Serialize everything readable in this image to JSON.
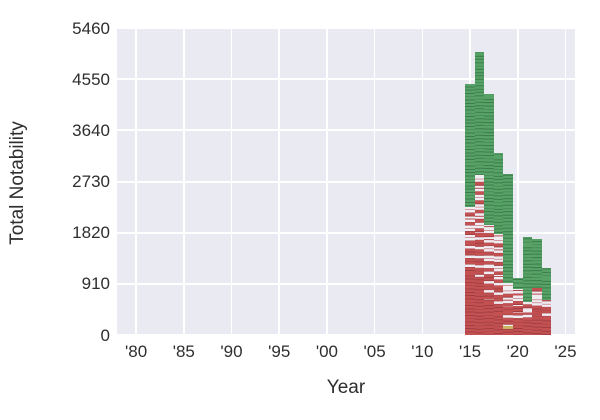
{
  "figure": {
    "background_color": "#ffffff",
    "plot_background_color": "#eaeaf2",
    "grid_color": "#ffffff",
    "text_color": "#2e2e2e"
  },
  "chart_data": {
    "type": "bar",
    "stacked": true,
    "title": "",
    "xlabel": "Year",
    "ylabel": "Total Notability",
    "xlim": [
      1978,
      2026
    ],
    "ylim": [
      0,
      5460
    ],
    "grid": true,
    "legend": "none",
    "bar_width_years": 1,
    "y_ticks": [
      {
        "value": 0,
        "label": "0"
      },
      {
        "value": 910,
        "label": "910"
      },
      {
        "value": 1820,
        "label": "1820"
      },
      {
        "value": 2730,
        "label": "2730"
      },
      {
        "value": 3640,
        "label": "3640"
      },
      {
        "value": 4550,
        "label": "4550"
      },
      {
        "value": 5460,
        "label": "5460"
      }
    ],
    "x_ticks": [
      {
        "value": 1980,
        "label": "'80"
      },
      {
        "value": 1985,
        "label": "'85"
      },
      {
        "value": 1990,
        "label": "'90"
      },
      {
        "value": 1995,
        "label": "'95"
      },
      {
        "value": 2000,
        "label": "'00"
      },
      {
        "value": 2005,
        "label": "'05"
      },
      {
        "value": 2010,
        "label": "'10"
      },
      {
        "value": 2015,
        "label": "'15"
      },
      {
        "value": 2020,
        "label": "'20"
      },
      {
        "value": 2025,
        "label": "'25"
      }
    ],
    "series_order": [
      "red_solid",
      "red_white_striped",
      "green"
    ],
    "series_colors": {
      "green_fill": "#57a266",
      "green_edge": "#3c7b4c",
      "red_fill": "#c45152",
      "red_edge": "#a03e42",
      "striped_white_fill": "#efecf2",
      "accent_yellow": "#c9b562"
    },
    "bars": [
      {
        "year": 2015,
        "red_solid": 1110,
        "red_white_striped": 1160,
        "green": 2200,
        "total": 4470
      },
      {
        "year": 2016,
        "red_solid": 990,
        "red_white_striped": 1850,
        "green": 2200,
        "total": 5040
      },
      {
        "year": 2017,
        "red_solid": 630,
        "red_white_striped": 1330,
        "green": 2330,
        "total": 4290
      },
      {
        "year": 2018,
        "red_solid": 450,
        "red_white_striped": 1340,
        "green": 1450,
        "total": 3240
      },
      {
        "year": 2019,
        "red_solid": 130,
        "red_white_striped": 800,
        "green": 1940,
        "total": 2870
      },
      {
        "year": 2020,
        "red_solid": 280,
        "red_white_striped": 530,
        "green": 210,
        "total": 1020
      },
      {
        "year": 2021,
        "red_solid": 240,
        "red_white_striped": 340,
        "green": 1170,
        "total": 1750
      },
      {
        "year": 2022,
        "red_solid": 360,
        "red_white_striped": 480,
        "green": 860,
        "total": 1700
      },
      {
        "year": 2023,
        "red_solid": 310,
        "red_white_striped": 320,
        "green": 570,
        "total": 1200
      }
    ],
    "accent_segments": [
      {
        "year": 2019,
        "from": 100,
        "to": 155,
        "color": "#c9b562"
      }
    ]
  }
}
